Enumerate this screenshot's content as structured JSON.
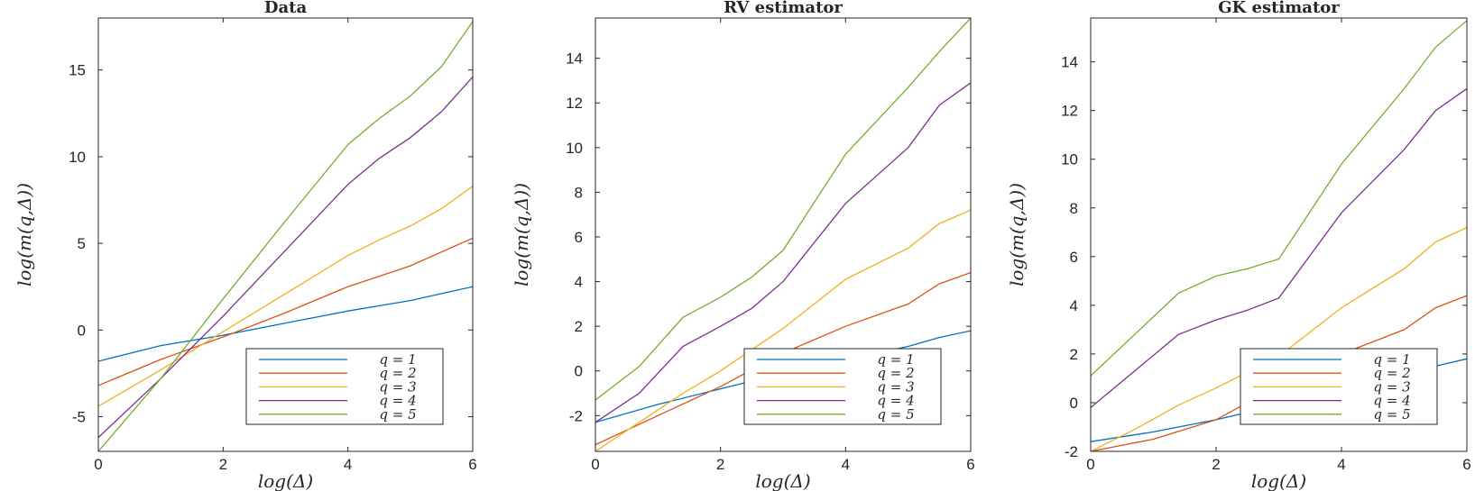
{
  "chart_data": [
    {
      "type": "line",
      "title": "Data",
      "xlabel": "log(Δ)",
      "ylabel": "log(m(q,Δ))",
      "xlim": [
        0,
        6
      ],
      "ylim": [
        -7,
        18
      ],
      "xticks": [
        0,
        2,
        4,
        6
      ],
      "yticks": [
        -5,
        0,
        5,
        10,
        15
      ],
      "legend_location": "lower-right",
      "series": [
        {
          "name": "q = 1",
          "color": "#0072BD",
          "x": [
            0,
            1,
            2,
            3,
            4,
            5,
            5.5,
            6
          ],
          "y": [
            -1.8,
            -0.9,
            -0.3,
            0.4,
            1.1,
            1.7,
            2.1,
            2.5
          ]
        },
        {
          "name": "q = 2",
          "color": "#D95319",
          "x": [
            0,
            1,
            2,
            3,
            4,
            5,
            5.5,
            6
          ],
          "y": [
            -3.2,
            -1.7,
            -0.4,
            1.0,
            2.5,
            3.7,
            4.5,
            5.3
          ]
        },
        {
          "name": "q = 3",
          "color": "#EDB120",
          "x": [
            0,
            1,
            2,
            3,
            4,
            4.5,
            5,
            5.5,
            6
          ],
          "y": [
            -4.4,
            -2.3,
            -0.1,
            2.1,
            4.3,
            5.2,
            6.0,
            7.0,
            8.3
          ]
        },
        {
          "name": "q = 4",
          "color": "#7E2F8E",
          "x": [
            0,
            1,
            2,
            3,
            4,
            4.5,
            5,
            5.5,
            6
          ],
          "y": [
            -6.2,
            -2.8,
            0.8,
            4.6,
            8.4,
            9.9,
            11.1,
            12.6,
            14.6
          ]
        },
        {
          "name": "q = 5",
          "color": "#77AC30",
          "x": [
            0,
            1,
            2,
            3,
            4,
            4.5,
            5,
            5.5,
            6
          ],
          "y": [
            -7.0,
            -2.8,
            1.8,
            6.3,
            10.7,
            12.2,
            13.5,
            15.2,
            17.8
          ]
        }
      ],
      "legend": [
        "q = 1",
        "q = 2",
        "q = 3",
        "q = 4",
        "q = 5"
      ]
    },
    {
      "type": "line",
      "title": "RV estimator",
      "xlabel": "log(Δ)",
      "ylabel": "log(m(q,Δ))",
      "xlim": [
        0,
        6
      ],
      "ylim": [
        -3.6,
        15.8
      ],
      "xticks": [
        0,
        2,
        4,
        6
      ],
      "yticks": [
        -2,
        0,
        2,
        4,
        6,
        8,
        10,
        12,
        14
      ],
      "legend_location": "lower-right",
      "series": [
        {
          "name": "q = 1",
          "color": "#0072BD",
          "x": [
            0,
            1,
            2,
            3,
            4,
            5,
            5.5,
            6
          ],
          "y": [
            -2.3,
            -1.5,
            -0.8,
            -0.1,
            0.5,
            1.1,
            1.5,
            1.8
          ]
        },
        {
          "name": "q = 2",
          "color": "#D95319",
          "x": [
            0,
            1,
            2,
            3,
            4,
            5,
            5.5,
            6
          ],
          "y": [
            -3.3,
            -2.0,
            -0.7,
            0.8,
            2.0,
            3.0,
            3.9,
            4.4
          ]
        },
        {
          "name": "q = 3",
          "color": "#EDB120",
          "x": [
            0,
            0.7,
            1.4,
            2,
            3,
            4,
            5,
            5.5,
            6
          ],
          "y": [
            -3.6,
            -2.3,
            -1.0,
            0.0,
            1.9,
            4.1,
            5.5,
            6.6,
            7.2
          ]
        },
        {
          "name": "q = 4",
          "color": "#7E2F8E",
          "x": [
            0,
            0.7,
            1.4,
            2,
            2.5,
            3,
            4,
            5,
            5.5,
            6
          ],
          "y": [
            -2.3,
            -1.0,
            1.1,
            2.0,
            2.8,
            4.0,
            7.5,
            10.0,
            11.9,
            12.9
          ]
        },
        {
          "name": "q = 5",
          "color": "#77AC30",
          "x": [
            0,
            0.7,
            1.4,
            2,
            2.5,
            3,
            4,
            5,
            5.5,
            6
          ],
          "y": [
            -1.3,
            0.2,
            2.4,
            3.3,
            4.2,
            5.4,
            9.7,
            12.7,
            14.3,
            15.8
          ]
        }
      ],
      "legend": [
        "q = 1",
        "q = 2",
        "q = 3",
        "q = 4",
        "q = 5"
      ]
    },
    {
      "type": "line",
      "title": "GK estimator",
      "xlabel": "log(Δ)",
      "ylabel": "log(m(q,Δ))",
      "xlim": [
        0,
        6
      ],
      "ylim": [
        -2,
        15.8
      ],
      "xticks": [
        0,
        2,
        4,
        6
      ],
      "yticks": [
        -2,
        0,
        2,
        4,
        6,
        8,
        10,
        12,
        14
      ],
      "legend_location": "lower-right",
      "series": [
        {
          "name": "q = 1",
          "color": "#0072BD",
          "x": [
            0,
            1,
            2,
            3,
            4,
            5,
            5.5,
            6
          ],
          "y": [
            -1.6,
            -1.2,
            -0.7,
            -0.1,
            0.5,
            1.1,
            1.5,
            1.8
          ]
        },
        {
          "name": "q = 2",
          "color": "#D95319",
          "x": [
            0,
            1,
            2,
            3,
            4,
            5,
            5.5,
            6
          ],
          "y": [
            -2.0,
            -1.5,
            -0.7,
            0.7,
            2.0,
            3.0,
            3.9,
            4.4
          ]
        },
        {
          "name": "q = 3",
          "color": "#EDB120",
          "x": [
            0,
            0.7,
            1.4,
            2,
            3,
            4,
            5,
            5.5,
            6
          ],
          "y": [
            -2.0,
            -1.1,
            -0.1,
            0.6,
            1.9,
            3.9,
            5.5,
            6.6,
            7.2
          ]
        },
        {
          "name": "q = 4",
          "color": "#7E2F8E",
          "x": [
            0,
            0.7,
            1.4,
            2,
            2.5,
            3,
            4,
            5,
            5.5,
            6
          ],
          "y": [
            -0.2,
            1.3,
            2.8,
            3.4,
            3.8,
            4.3,
            7.8,
            10.4,
            12.0,
            12.9
          ]
        },
        {
          "name": "q = 5",
          "color": "#77AC30",
          "x": [
            0,
            0.7,
            1.4,
            2,
            2.5,
            3,
            4,
            5,
            5.5,
            6
          ],
          "y": [
            1.1,
            2.8,
            4.5,
            5.2,
            5.5,
            5.9,
            9.8,
            12.9,
            14.6,
            15.7
          ]
        }
      ],
      "legend": [
        "q = 1",
        "q = 2",
        "q = 3",
        "q = 4",
        "q = 5"
      ]
    }
  ]
}
